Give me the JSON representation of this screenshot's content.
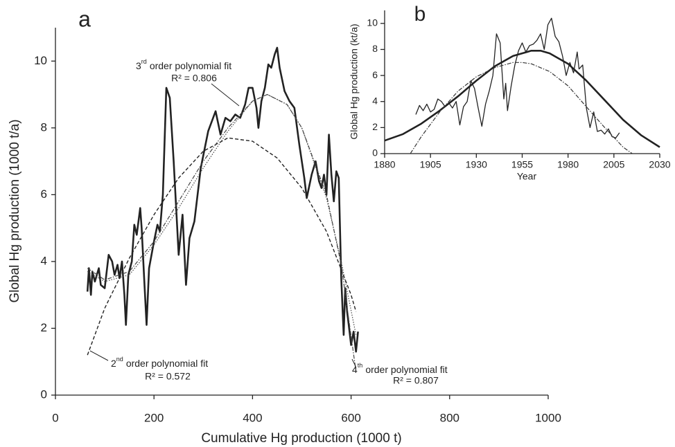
{
  "chart_data": [
    {
      "type": "line",
      "label": "a",
      "x_label": "Cumulative Hg production (1000 t)",
      "y_label": "Global Hg production (1000 t/a)",
      "xlim": [
        0,
        1000
      ],
      "xticks": [
        0,
        200,
        400,
        600,
        800,
        1000
      ],
      "ylim": [
        0,
        11
      ],
      "yticks": [
        0,
        2,
        4,
        6,
        8,
        10
      ],
      "series": [
        {
          "style": "thick",
          "color": "#222222",
          "x": [
            65,
            68,
            72,
            75,
            80,
            88,
            92,
            100,
            108,
            115,
            120,
            126,
            130,
            135,
            140,
            143,
            148,
            155,
            160,
            165,
            172,
            175,
            180,
            185,
            190,
            200,
            207,
            212,
            218,
            225,
            232,
            240,
            250,
            258,
            265,
            272,
            282,
            295,
            310,
            325,
            335,
            345,
            355,
            365,
            375,
            385,
            392,
            400,
            408,
            412,
            418,
            425,
            432,
            438,
            445,
            450,
            455,
            465,
            475,
            485,
            495,
            505,
            510,
            520,
            528,
            535,
            540,
            545,
            550,
            555,
            560,
            565,
            570,
            575,
            580,
            585,
            588,
            592,
            596,
            600,
            605,
            610,
            614
          ],
          "values": [
            3.1,
            3.8,
            3.0,
            3.7,
            3.4,
            3.8,
            3.3,
            3.2,
            4.2,
            4.0,
            3.6,
            3.9,
            3.5,
            4.0,
            3.0,
            2.1,
            3.6,
            4.0,
            5.1,
            4.8,
            5.6,
            5.0,
            3.5,
            2.1,
            3.8,
            4.6,
            5.1,
            4.9,
            6.0,
            9.2,
            8.9,
            7.0,
            4.2,
            5.4,
            3.3,
            4.7,
            5.2,
            6.8,
            7.9,
            8.5,
            7.8,
            8.3,
            8.2,
            8.4,
            8.3,
            8.7,
            9.2,
            9.2,
            8.6,
            8.0,
            8.8,
            9.2,
            9.9,
            9.8,
            10.2,
            10.4,
            9.8,
            9.1,
            8.8,
            8.6,
            7.5,
            6.5,
            5.9,
            6.6,
            7.0,
            6.4,
            6.2,
            6.6,
            6.0,
            7.8,
            6.6,
            5.8,
            6.7,
            6.5,
            3.5,
            1.8,
            3.2,
            2.5,
            2.0,
            1.5,
            1.9,
            1.3,
            1.9
          ]
        },
        {
          "style": "dashed",
          "color": "#222222",
          "x": [
            65,
            100,
            150,
            200,
            250,
            300,
            350,
            400,
            450,
            500,
            550,
            600,
            610
          ],
          "values": [
            1.2,
            2.6,
            4.1,
            5.4,
            6.5,
            7.3,
            7.7,
            7.6,
            7.1,
            6.2,
            4.9,
            3.0,
            2.5
          ]
        },
        {
          "style": "dotted",
          "color": "#444444",
          "x": [
            65,
            100,
            150,
            200,
            250,
            300,
            350,
            400,
            430,
            470,
            500,
            550,
            580,
            610
          ],
          "values": [
            3.7,
            3.4,
            3.6,
            4.5,
            5.6,
            6.8,
            7.9,
            8.8,
            9.0,
            8.7,
            8.0,
            5.9,
            4.0,
            1.8
          ]
        },
        {
          "style": "dashdot",
          "color": "#444444",
          "x": [
            65,
            100,
            150,
            200,
            250,
            300,
            350,
            400,
            430,
            470,
            500,
            550,
            580,
            610
          ],
          "values": [
            3.8,
            3.45,
            3.7,
            4.6,
            5.8,
            7.0,
            8.0,
            8.8,
            9.0,
            8.7,
            8.0,
            6.0,
            3.9,
            0.7
          ]
        }
      ],
      "annotations": [
        {
          "ordinal": "3",
          "suffix": "rd",
          "text": "order polynomial fit",
          "r2": "R² = 0.806"
        },
        {
          "ordinal": "2",
          "suffix": "nd",
          "text": "order polynomial fit",
          "r2": "R² = 0.572"
        },
        {
          "ordinal": "4",
          "suffix": "th",
          "text": "order polynomial fit",
          "r2": "R² = 0.807"
        }
      ]
    },
    {
      "type": "line",
      "label": "b",
      "x_label": "Year",
      "y_label": "Global Hg production (kt/a)",
      "xlim": [
        1880,
        2030
      ],
      "xticks": [
        1880,
        1905,
        1930,
        1955,
        1980,
        2005,
        2030
      ],
      "ylim": [
        0,
        11
      ],
      "yticks": [
        0,
        2,
        4,
        6,
        8,
        10
      ],
      "series": [
        {
          "style": "solid",
          "color": "#222222",
          "x": [
            1897,
            1899,
            1901,
            1903,
            1905,
            1907,
            1909,
            1911,
            1913,
            1915,
            1917,
            1919,
            1921,
            1923,
            1925,
            1927,
            1929,
            1931,
            1933,
            1935,
            1937,
            1939,
            1941,
            1943,
            1945,
            1946,
            1947,
            1949,
            1951,
            1953,
            1955,
            1957,
            1959,
            1961,
            1963,
            1965,
            1967,
            1969,
            1971,
            1973,
            1975,
            1977,
            1979,
            1981,
            1983,
            1985,
            1986,
            1988,
            1990,
            1992,
            1994,
            1996,
            1998,
            2000,
            2002,
            2004,
            2006,
            2008
          ],
          "values": [
            3.0,
            3.7,
            3.3,
            3.8,
            3.2,
            3.4,
            4.2,
            4.0,
            3.6,
            3.9,
            3.5,
            4.0,
            2.2,
            3.6,
            4.0,
            5.6,
            5.0,
            3.5,
            2.1,
            3.8,
            4.8,
            6.0,
            9.2,
            8.5,
            4.2,
            5.4,
            3.3,
            5.2,
            6.8,
            7.9,
            8.5,
            7.8,
            8.3,
            8.4,
            8.7,
            9.2,
            8.0,
            9.9,
            10.4,
            9.0,
            8.6,
            7.5,
            6.0,
            7.0,
            6.2,
            7.8,
            6.5,
            6.8,
            3.5,
            2.0,
            3.2,
            1.7,
            1.8,
            1.5,
            1.9,
            1.3,
            1.2,
            1.6
          ]
        },
        {
          "style": "thick",
          "color": "#222222",
          "x": [
            1880,
            1890,
            1900,
            1910,
            1920,
            1930,
            1940,
            1950,
            1960,
            1965,
            1970,
            1980,
            1990,
            2000,
            2010,
            2020,
            2030
          ],
          "values": [
            1.0,
            1.5,
            2.3,
            3.3,
            4.4,
            5.6,
            6.7,
            7.5,
            7.9,
            7.9,
            7.7,
            6.9,
            5.6,
            4.1,
            2.6,
            1.4,
            0.5
          ]
        },
        {
          "style": "dashdot",
          "color": "#333333",
          "x": [
            1894,
            1900,
            1910,
            1920,
            1930,
            1940,
            1950,
            1955,
            1960,
            1970,
            1980,
            1990,
            2000,
            2010,
            2015
          ],
          "values": [
            0,
            1.3,
            3.2,
            4.8,
            5.9,
            6.6,
            7.0,
            7.0,
            6.9,
            6.3,
            5.2,
            3.6,
            2.0,
            0.5,
            0
          ]
        }
      ]
    }
  ]
}
